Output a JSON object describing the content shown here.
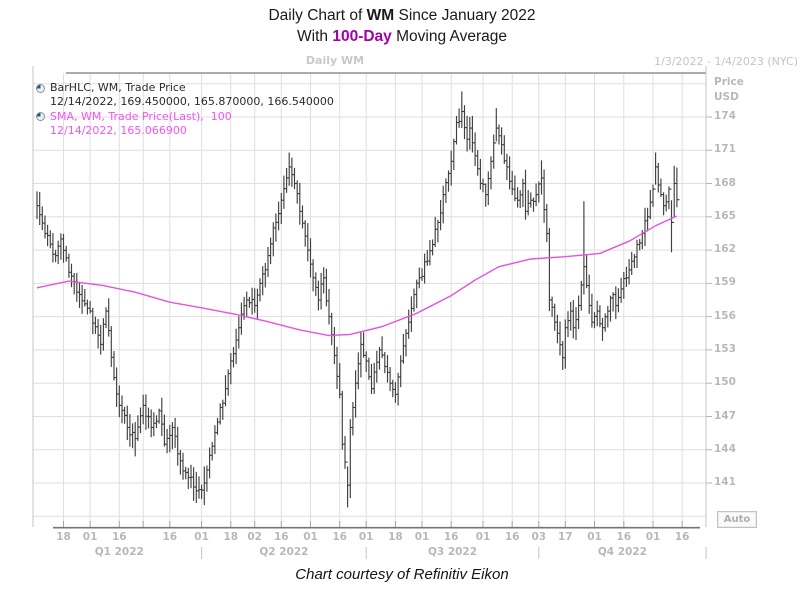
{
  "titles": {
    "line1_prefix": "Daily Chart of ",
    "symbol": "WM",
    "line1_suffix": " Since January 2022",
    "line2_prefix": "With ",
    "ma_highlight": "100-Day",
    "line2_suffix": " Moving Average"
  },
  "chart": {
    "subtitle": "Daily WM",
    "date_range": "1/3/2022 - 1/4/2023 (NYC)",
    "price_axis_title_1": "Price",
    "price_axis_title_2": "USD",
    "auto_label": "Auto"
  },
  "legend": {
    "items": [
      {
        "icon": "quarter-circle-series-icon",
        "label": "BarHLC, WM, Trade Price",
        "detail": "12/14/2022, 169.450000, 165.870000, 166.540000",
        "color": "#2b2b2b"
      },
      {
        "icon": "quarter-circle-series-icon",
        "label": "SMA, WM, Trade Price(Last),  100",
        "detail": "12/14/2022, 165.066900",
        "color": "#f653f6"
      }
    ]
  },
  "caption": "Chart courtesy of Refinitiv Eikon",
  "colors": {
    "bars": "#3f3f3f",
    "sma_line": "#e056e0",
    "grid": "#dfdfdf",
    "axis_text": "#b8b8b8",
    "ma_title_accent": "#a100a8"
  },
  "chart_data": {
    "type": "bar",
    "subtype": "hlc-bars-with-line-overlay",
    "title": "Daily Chart of WM Since January 2022 With 100-Day Moving Average",
    "ylabel": "Price USD",
    "ylim": [
      137.8,
      177.8
    ],
    "y_ticks": [
      141,
      144,
      147,
      150,
      153,
      156,
      159,
      162,
      165,
      168,
      171,
      174
    ],
    "grid": true,
    "x_range_labels": [
      "1/3/2022",
      "1/4/2023"
    ],
    "x_ticks": [
      {
        "label": "18",
        "day": 10
      },
      {
        "label": "01",
        "day": 20
      },
      {
        "label": "16",
        "day": 31
      },
      {
        "label": "",
        "day": 40
      },
      {
        "label": "16",
        "day": 50
      },
      {
        "label": "01",
        "day": 62
      },
      {
        "label": "18",
        "day": 73
      },
      {
        "label": "02",
        "day": 82
      },
      {
        "label": "16",
        "day": 92
      },
      {
        "label": "01",
        "day": 103
      },
      {
        "label": "16",
        "day": 114
      },
      {
        "label": "01",
        "day": 124
      },
      {
        "label": "18",
        "day": 135
      },
      {
        "label": "01",
        "day": 145
      },
      {
        "label": "16",
        "day": 156
      },
      {
        "label": "01",
        "day": 168
      },
      {
        "label": "16",
        "day": 179
      },
      {
        "label": "03",
        "day": 189
      },
      {
        "label": "17",
        "day": 199
      },
      {
        "label": "01",
        "day": 210
      },
      {
        "label": "16",
        "day": 221
      },
      {
        "label": "01",
        "day": 232
      },
      {
        "label": "16",
        "day": 243
      }
    ],
    "quarters": [
      {
        "label": "Q1 2022",
        "start_day": 0,
        "end_day": 62
      },
      {
        "label": "Q2 2022",
        "start_day": 62,
        "end_day": 124
      },
      {
        "label": "Q3 2022",
        "start_day": 124,
        "end_day": 189
      },
      {
        "label": "Q4 2022",
        "start_day": 189,
        "end_day": 252
      }
    ],
    "series": [
      {
        "name": "WM Trade Price (BarHLC)",
        "style": "hlc-bars",
        "keypoints_format": "[trading_day, close] or [trading_day, close, high, low]",
        "keypoints": [
          [
            0,
            166.0,
            167.3,
            164.8
          ],
          [
            3,
            163.5
          ],
          [
            7,
            161.5
          ],
          [
            9,
            163.0
          ],
          [
            12,
            160.0
          ],
          [
            16,
            158.0
          ],
          [
            20,
            156.5
          ],
          [
            24,
            153.5
          ],
          [
            26,
            156.5
          ],
          [
            29,
            150.5
          ],
          [
            31,
            148.0
          ],
          [
            34,
            146.0
          ],
          [
            37,
            145.0,
            146.5,
            143.4
          ],
          [
            40,
            148.0
          ],
          [
            43,
            146.0
          ],
          [
            46,
            147.5
          ],
          [
            48,
            144.5
          ],
          [
            51,
            146.0
          ],
          [
            54,
            143.0
          ],
          [
            57,
            141.5
          ],
          [
            60,
            140.3,
            142.0,
            139.2
          ],
          [
            63,
            141.0,
            142.5,
            139.0
          ],
          [
            65,
            143.5
          ],
          [
            68,
            146.5
          ],
          [
            71,
            149.5
          ],
          [
            73,
            152.0
          ],
          [
            76,
            155.0
          ],
          [
            79,
            157.5
          ],
          [
            82,
            157.0
          ],
          [
            84,
            159.0
          ],
          [
            87,
            161.5
          ],
          [
            89,
            164.0
          ],
          [
            92,
            166.5
          ],
          [
            95,
            169.5,
            170.8,
            167.8
          ],
          [
            97,
            168.0
          ],
          [
            99,
            165.5
          ],
          [
            102,
            162.0
          ],
          [
            104,
            159.5
          ],
          [
            106,
            157.5
          ],
          [
            108,
            159.5
          ],
          [
            110,
            156.0
          ],
          [
            112,
            152.5
          ],
          [
            114,
            149.0
          ],
          [
            115,
            144.5
          ],
          [
            117,
            140.8,
            142.5,
            138.8
          ],
          [
            118,
            146.0
          ],
          [
            120,
            150.0
          ],
          [
            122,
            153.5
          ],
          [
            124,
            152.0
          ],
          [
            126,
            149.5
          ],
          [
            127,
            151.0
          ],
          [
            129,
            153.0
          ],
          [
            131,
            151.5
          ],
          [
            133,
            150.0
          ],
          [
            135,
            149.0
          ],
          [
            137,
            152.0
          ],
          [
            139,
            154.5
          ],
          [
            140,
            155.5
          ],
          [
            142,
            158.0
          ],
          [
            144,
            159.5
          ],
          [
            147,
            161.0
          ],
          [
            149,
            162.5
          ],
          [
            151,
            164.5
          ],
          [
            153,
            167.0
          ],
          [
            156,
            170.0
          ],
          [
            158,
            173.5
          ],
          [
            160,
            174.5,
            176.3,
            173.0
          ],
          [
            162,
            172.0
          ],
          [
            163,
            173.0
          ],
          [
            165,
            170.5
          ],
          [
            167,
            168.0
          ],
          [
            169,
            167.0,
            168.0,
            165.9
          ],
          [
            171,
            170.0
          ],
          [
            173,
            173.0,
            174.8,
            171.8
          ],
          [
            175,
            171.5
          ],
          [
            177,
            169.5
          ],
          [
            179,
            167.5
          ],
          [
            181,
            166.5
          ],
          [
            183,
            168.0
          ],
          [
            184,
            165.5
          ],
          [
            186,
            166.5
          ],
          [
            188,
            167.0
          ],
          [
            190,
            168.5,
            170.1,
            167.0
          ],
          [
            192,
            163.5
          ],
          [
            193,
            157.5,
            164.0,
            156.5
          ],
          [
            195,
            155.5
          ],
          [
            196,
            154.5
          ],
          [
            198,
            152.3,
            153.8,
            151.2
          ],
          [
            199,
            155.0
          ],
          [
            201,
            156.5
          ],
          [
            202,
            155.0
          ],
          [
            204,
            157.0
          ],
          [
            206,
            160.5,
            166.4,
            158.0
          ],
          [
            208,
            157.0
          ],
          [
            209,
            155.5
          ],
          [
            211,
            156.5
          ],
          [
            213,
            155.0
          ],
          [
            215,
            156.5
          ],
          [
            217,
            158.0
          ],
          [
            218,
            157.0
          ],
          [
            220,
            158.5
          ],
          [
            222,
            159.5
          ],
          [
            224,
            161.0
          ],
          [
            226,
            162.5
          ],
          [
            228,
            163.5
          ],
          [
            230,
            165.0
          ],
          [
            232,
            167.5
          ],
          [
            233,
            169.5,
            170.8,
            167.9
          ],
          [
            235,
            167.0
          ],
          [
            236,
            166.0
          ],
          [
            238,
            167.5
          ],
          [
            239,
            164.5,
            166.5,
            161.8
          ],
          [
            240,
            168.0,
            169.6,
            165.0
          ],
          [
            241,
            166.54,
            169.45,
            165.87
          ]
        ],
        "last_bar": {
          "date": "12/14/2022",
          "high": 169.45,
          "low": 165.87,
          "close": 166.54
        }
      },
      {
        "name": "SMA 100 of WM Trade Price(Last)",
        "style": "line",
        "keypoints_format": "[trading_day, value]",
        "keypoints": [
          [
            0,
            158.6
          ],
          [
            12,
            159.2
          ],
          [
            25,
            158.8
          ],
          [
            37,
            158.2
          ],
          [
            50,
            157.3
          ],
          [
            62,
            156.8
          ],
          [
            75,
            156.2
          ],
          [
            86,
            155.6
          ],
          [
            99,
            154.8
          ],
          [
            110,
            154.3
          ],
          [
            118,
            154.4
          ],
          [
            130,
            155.1
          ],
          [
            143,
            156.3
          ],
          [
            156,
            157.9
          ],
          [
            165,
            159.3
          ],
          [
            174,
            160.5
          ],
          [
            186,
            161.2
          ],
          [
            199,
            161.4
          ],
          [
            212,
            161.7
          ],
          [
            223,
            162.8
          ],
          [
            233,
            164.2
          ],
          [
            241,
            165.07
          ]
        ],
        "last_value": {
          "date": "12/14/2022",
          "value": 165.0669
        }
      }
    ]
  }
}
